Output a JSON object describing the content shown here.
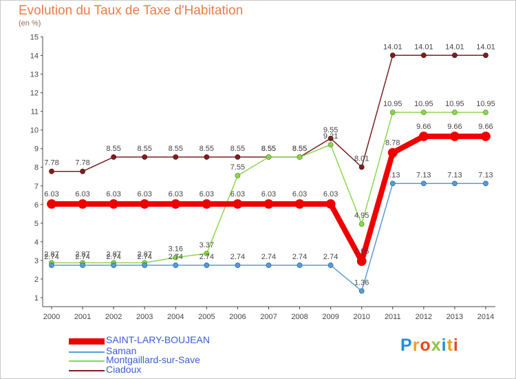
{
  "title": "Evolution du Taux de Taxe d'Habitation",
  "unit": "(en %)",
  "logo": {
    "text": "Proxiti",
    "letters": [
      {
        "ch": "P",
        "color": "#1f8fd8"
      },
      {
        "ch": "r",
        "color": "#f0a020"
      },
      {
        "ch": "o",
        "color": "#e8481c"
      },
      {
        "ch": "x",
        "color": "#8cc63f"
      },
      {
        "ch": "i",
        "color": "#1f8fd8"
      },
      {
        "ch": "t",
        "color": "#f0a020"
      },
      {
        "ch": "i",
        "color": "#e8481c"
      }
    ]
  },
  "chart_data": {
    "type": "line",
    "title": "Evolution du Taux de Taxe d'Habitation",
    "ylabel": "(en %)",
    "xlabel": "",
    "x": [
      "2000",
      "2001",
      "2002",
      "2003",
      "2004",
      "2005",
      "2006",
      "2007",
      "2008",
      "2009",
      "2010",
      "2011",
      "2012",
      "2013",
      "2014"
    ],
    "ylim": [
      1,
      15
    ],
    "yticks": [
      "1",
      "2",
      "3",
      "4",
      "5",
      "6",
      "7",
      "8",
      "9",
      "10",
      "11",
      "12",
      "13",
      "14",
      "15"
    ],
    "grid": false,
    "legend": "bottom-left",
    "series": [
      {
        "name": "Ciadoux",
        "color": "#7a2020",
        "values": [
          7.78,
          7.78,
          8.55,
          8.55,
          8.55,
          8.55,
          8.55,
          8.55,
          8.55,
          9.55,
          8.01,
          14.01,
          14.01,
          14.01,
          14.01
        ],
        "labels": [
          "7.78",
          "7.78",
          "8.55",
          "8.55",
          "8.55",
          "8.55",
          "8.55",
          "8.55",
          "8.55",
          "9.55",
          "8.01",
          "14.01",
          "14.01",
          "14.01",
          "14.01"
        ]
      },
      {
        "name": "Montgaillard-sur-Save",
        "color": "#8cd650",
        "values": [
          2.87,
          2.87,
          2.87,
          2.87,
          3.16,
          3.37,
          7.55,
          8.55,
          8.55,
          9.21,
          4.95,
          10.95,
          10.95,
          10.95,
          10.95
        ],
        "labels": [
          "2.87",
          "2.87",
          "2.87",
          "2.87",
          "3.16",
          "3.37",
          "7.55",
          "8.55",
          "8.55",
          "9.21",
          "4.95",
          "10.95",
          "10.95",
          "10.95",
          "10.95"
        ]
      },
      {
        "name": "Saman",
        "color": "#5a9ad6",
        "values": [
          2.74,
          2.74,
          2.74,
          2.74,
          2.74,
          2.74,
          2.74,
          2.74,
          2.74,
          2.74,
          1.36,
          7.13,
          7.13,
          7.13,
          7.13
        ],
        "labels": [
          "2.74",
          "2.74",
          "2.74",
          "2.74",
          "2.74",
          "2.74",
          "2.74",
          "2.74",
          "2.74",
          "2.74",
          "1.36",
          "7.13",
          "7.13",
          "7.13",
          "7.13"
        ]
      },
      {
        "name": "SAINT-LARY-BOUJEAN",
        "color": "#ee0000",
        "values": [
          6.03,
          6.03,
          6.03,
          6.03,
          6.03,
          6.03,
          6.03,
          6.03,
          6.03,
          6.03,
          2.96,
          8.78,
          9.66,
          9.66,
          9.66
        ],
        "labels": [
          "6.03",
          "6.03",
          "6.03",
          "6.03",
          "6.03",
          "6.03",
          "6.03",
          "6.03",
          "6.03",
          "6.03",
          "2.96",
          "8.78",
          "9.66",
          "9.66",
          "9.66"
        ]
      }
    ],
    "legend_order": [
      "SAINT-LARY-BOUJEAN",
      "Saman",
      "Montgaillard-sur-Save",
      "Ciadoux"
    ]
  }
}
